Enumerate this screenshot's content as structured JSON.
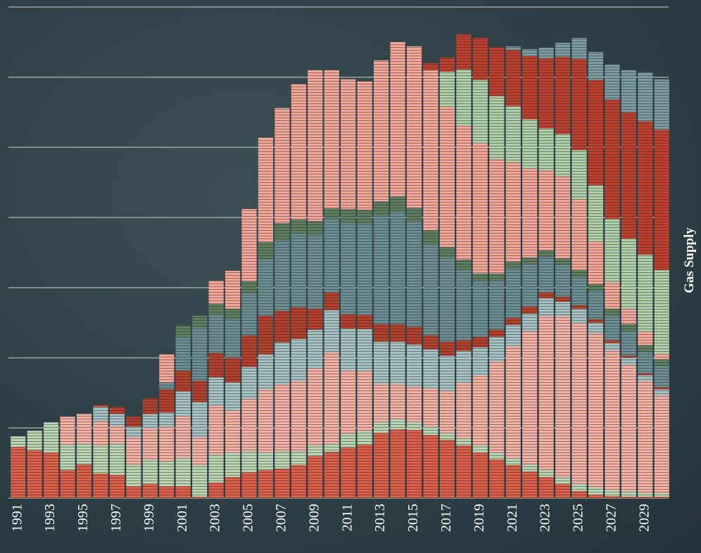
{
  "chart_data": {
    "type": "stacked_bar",
    "y_label": "Gas Supply",
    "categories": [
      "1991",
      null,
      "1993",
      null,
      "1995",
      null,
      "1997",
      null,
      "1999",
      null,
      "2001",
      null,
      "2003",
      null,
      "2005",
      null,
      "2007",
      null,
      "2009",
      null,
      "2011",
      null,
      "2013",
      null,
      "2015",
      null,
      "2017",
      null,
      "2019",
      null,
      "2021",
      null,
      "2023",
      null,
      "2025",
      null,
      "2027",
      null,
      "2029",
      null
    ],
    "ylim": [
      0,
      7
    ],
    "yticks": [
      0,
      1,
      2,
      3,
      4,
      5,
      6,
      7
    ],
    "grid": true,
    "series": [
      {
        "color": "#df5f48",
        "values": [
          0.73,
          0.68,
          0.65,
          0.4,
          0.48,
          0.35,
          0.33,
          0.17,
          0.2,
          0.17,
          0.17,
          0.02,
          0.22,
          0.3,
          0.37,
          0.4,
          0.42,
          0.47,
          0.6,
          0.66,
          0.72,
          0.76,
          0.93,
          0.98,
          0.97,
          0.9,
          0.83,
          0.75,
          0.65,
          0.55,
          0.47,
          0.38,
          0.3,
          0.2,
          0.1,
          0.05,
          0.03,
          0.02,
          0.02,
          0.02
        ]
      },
      {
        "color": "#bcd6b4",
        "values": [
          0.15,
          0.28,
          0.43,
          0.36,
          0.3,
          0.4,
          0.45,
          0.3,
          0.35,
          0.35,
          0.4,
          0.45,
          0.4,
          0.35,
          0.3,
          0.25,
          0.25,
          0.2,
          0.15,
          0.12,
          0.2,
          0.2,
          0.15,
          0.15,
          0.12,
          0.12,
          0.1,
          0.1,
          0.1,
          0.1,
          0.1,
          0.1,
          0.1,
          0.1,
          0.1,
          0.1,
          0.08,
          0.08,
          0.05,
          0.05
        ]
      },
      {
        "color": "#f5b2a4",
        "values": [
          0,
          0,
          0,
          0.4,
          0.42,
          0.35,
          0.25,
          0.4,
          0.45,
          0.5,
          0.6,
          0.4,
          0.7,
          0.6,
          0.75,
          0.9,
          0.95,
          1.0,
          1.1,
          1.3,
          0.9,
          0.85,
          0.55,
          0.5,
          0.5,
          0.55,
          0.6,
          0.8,
          1.0,
          1.3,
          1.6,
          1.9,
          2.2,
          2.3,
          2.3,
          2.2,
          2.0,
          1.8,
          1.6,
          1.4
        ]
      },
      {
        "color": "#a7c3c4",
        "values": [
          0,
          0,
          0,
          0,
          0,
          0.2,
          0.17,
          0.15,
          0.2,
          0.2,
          0.35,
          0.5,
          0.4,
          0.4,
          0.45,
          0.5,
          0.6,
          0.6,
          0.55,
          0.6,
          0.6,
          0.6,
          0.6,
          0.6,
          0.6,
          0.55,
          0.5,
          0.45,
          0.4,
          0.35,
          0.3,
          0.25,
          0.25,
          0.2,
          0.2,
          0.15,
          0.1,
          0.1,
          0.08,
          0.08
        ]
      },
      {
        "color": "#b5402c",
        "values": [
          0,
          0,
          0,
          0,
          0,
          0.03,
          0.1,
          0.14,
          0.22,
          0.33,
          0.3,
          0.3,
          0.35,
          0.35,
          0.45,
          0.55,
          0.45,
          0.45,
          0.3,
          0.25,
          0.2,
          0.2,
          0.25,
          0.25,
          0.25,
          0.2,
          0.2,
          0.15,
          0.15,
          0.1,
          0.1,
          0.1,
          0.08,
          0.07,
          0.05,
          0.05,
          0.04,
          0.03,
          0.03,
          0.03
        ]
      },
      {
        "color": "#6d8e93",
        "values": [
          0,
          0,
          0,
          0,
          0,
          0,
          0,
          0,
          0,
          0.1,
          0.47,
          0.76,
          0.55,
          0.55,
          0.6,
          0.8,
          1.0,
          1.05,
          1.05,
          1.05,
          1.3,
          1.3,
          1.55,
          1.6,
          1.5,
          1.3,
          1.2,
          1.0,
          0.8,
          0.7,
          0.7,
          0.6,
          0.5,
          0.45,
          0.4,
          0.4,
          0.35,
          0.35,
          0.3,
          0.3
        ]
      },
      {
        "color": "#5f8060",
        "values": [
          0,
          0,
          0,
          0,
          0,
          0,
          0,
          0,
          0,
          0,
          0.17,
          0.17,
          0.15,
          0.15,
          0.17,
          0.25,
          0.25,
          0.2,
          0.2,
          0.15,
          0.2,
          0.2,
          0.2,
          0.22,
          0.2,
          0.2,
          0.15,
          0.15,
          0.1,
          0.1,
          0.1,
          0.1,
          0.1,
          0.1,
          0.1,
          0.1,
          0.1,
          0.1,
          0.1,
          0.1
        ]
      },
      {
        "color": "#f7a898",
        "values": [
          0,
          0,
          0,
          0,
          0,
          0,
          0,
          0,
          0,
          0.4,
          0,
          0,
          0.33,
          0.54,
          1.03,
          1.49,
          1.64,
          1.93,
          2.15,
          1.97,
          1.85,
          1.83,
          2.01,
          2.2,
          2.3,
          2.28,
          2.0,
          1.91,
          1.86,
          1.63,
          1.42,
          1.27,
          1.14,
          1.17,
          1.01,
          0.61,
          0.38,
          0.22,
          0.19,
          0.07
        ]
      },
      {
        "color": "#b2d0a8",
        "values": [
          0,
          0,
          0,
          0,
          0,
          0,
          0,
          0,
          0,
          0,
          0,
          0,
          0,
          0,
          0,
          0,
          0,
          0,
          0,
          0,
          0,
          0,
          0,
          0,
          0,
          0,
          0.5,
          0.8,
          0.9,
          0.9,
          0.8,
          0.7,
          0.6,
          0.6,
          0.7,
          0.8,
          0.9,
          1.0,
          1.1,
          1.2
        ]
      },
      {
        "color": "#c0412d",
        "values": [
          0,
          0,
          0,
          0,
          0,
          0,
          0,
          0,
          0,
          0,
          0,
          0,
          0,
          0,
          0,
          0,
          0,
          0,
          0,
          0,
          0,
          0,
          0,
          0,
          0,
          0.1,
          0.2,
          0.5,
          0.6,
          0.7,
          0.8,
          0.9,
          1.0,
          1.1,
          1.3,
          1.5,
          1.7,
          1.8,
          1.9,
          2.0
        ]
      },
      {
        "color": "#7d9ca0",
        "values": [
          0,
          0,
          0,
          0,
          0,
          0,
          0,
          0,
          0,
          0,
          0,
          0,
          0,
          0,
          0,
          0,
          0,
          0,
          0,
          0,
          0,
          0,
          0,
          0,
          0,
          0,
          0,
          0,
          0,
          0,
          0.05,
          0.1,
          0.15,
          0.2,
          0.3,
          0.4,
          0.5,
          0.6,
          0.7,
          0.72
        ]
      }
    ]
  }
}
